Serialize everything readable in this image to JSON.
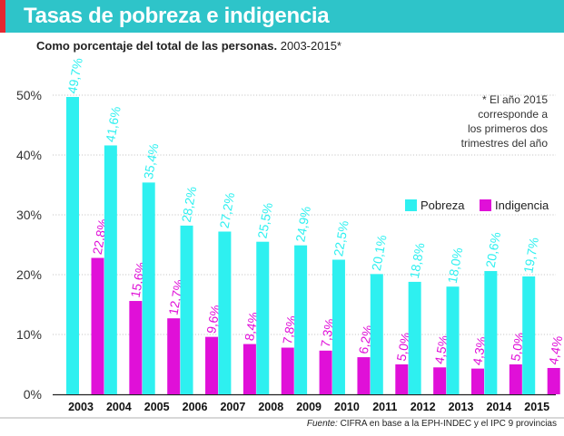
{
  "header": {
    "title": "Tasas de pobreza e indigencia",
    "subtitle": "Como porcentaje del total de las personas.",
    "period": "2003-2015*"
  },
  "note": {
    "lines": [
      "* El año 2015",
      "corresponde a",
      "los primeros dos",
      "trimestres del año"
    ]
  },
  "source": {
    "label": "Fuente:",
    "text": "CIFRA en base a la EPH-INDEC y el IPC 9 provincias"
  },
  "colors": {
    "banner": "#2ec4c9",
    "accent": "#e4282f",
    "pobreza": "#2ef0f0",
    "indigencia": "#e010d8"
  },
  "chart_data": {
    "type": "bar",
    "title": "Tasas de pobreza e indigencia",
    "ylim": [
      0,
      50
    ],
    "yticks": [
      0,
      10,
      20,
      30,
      40,
      50
    ],
    "ytick_labels": [
      "0%",
      "10%",
      "20%",
      "30%",
      "40%",
      "50%"
    ],
    "grid": true,
    "legend_position": "right",
    "categories": [
      "2003",
      "2004",
      "2005",
      "2006",
      "2007",
      "2008",
      "2009",
      "2010",
      "2011",
      "2012",
      "2013",
      "2014",
      "2015"
    ],
    "series": [
      {
        "name": "Pobreza",
        "values": [
          49.7,
          41.6,
          35.4,
          28.2,
          27.2,
          25.5,
          24.9,
          22.5,
          20.1,
          18.8,
          18.0,
          20.6,
          19.7
        ],
        "labels": [
          "49,7%",
          "41,6%",
          "35,4%",
          "28,2%",
          "27,2%",
          "25,5%",
          "24,9%",
          "22,5%",
          "20,1%",
          "18,8%",
          "18,0%",
          "20,6%",
          "19,7%"
        ]
      },
      {
        "name": "Indigencia",
        "values": [
          22.8,
          15.6,
          12.7,
          9.6,
          8.4,
          7.8,
          7.3,
          6.2,
          5.0,
          4.5,
          4.3,
          5.0,
          4.4
        ],
        "labels": [
          "22,8%",
          "15,6%",
          "12,7%",
          "9,6%",
          "8,4%",
          "7,8%",
          "7,3%",
          "6,2%",
          "5,0%",
          "4,5%",
          "4,3%",
          "5,0%",
          "4,4%"
        ]
      }
    ]
  }
}
